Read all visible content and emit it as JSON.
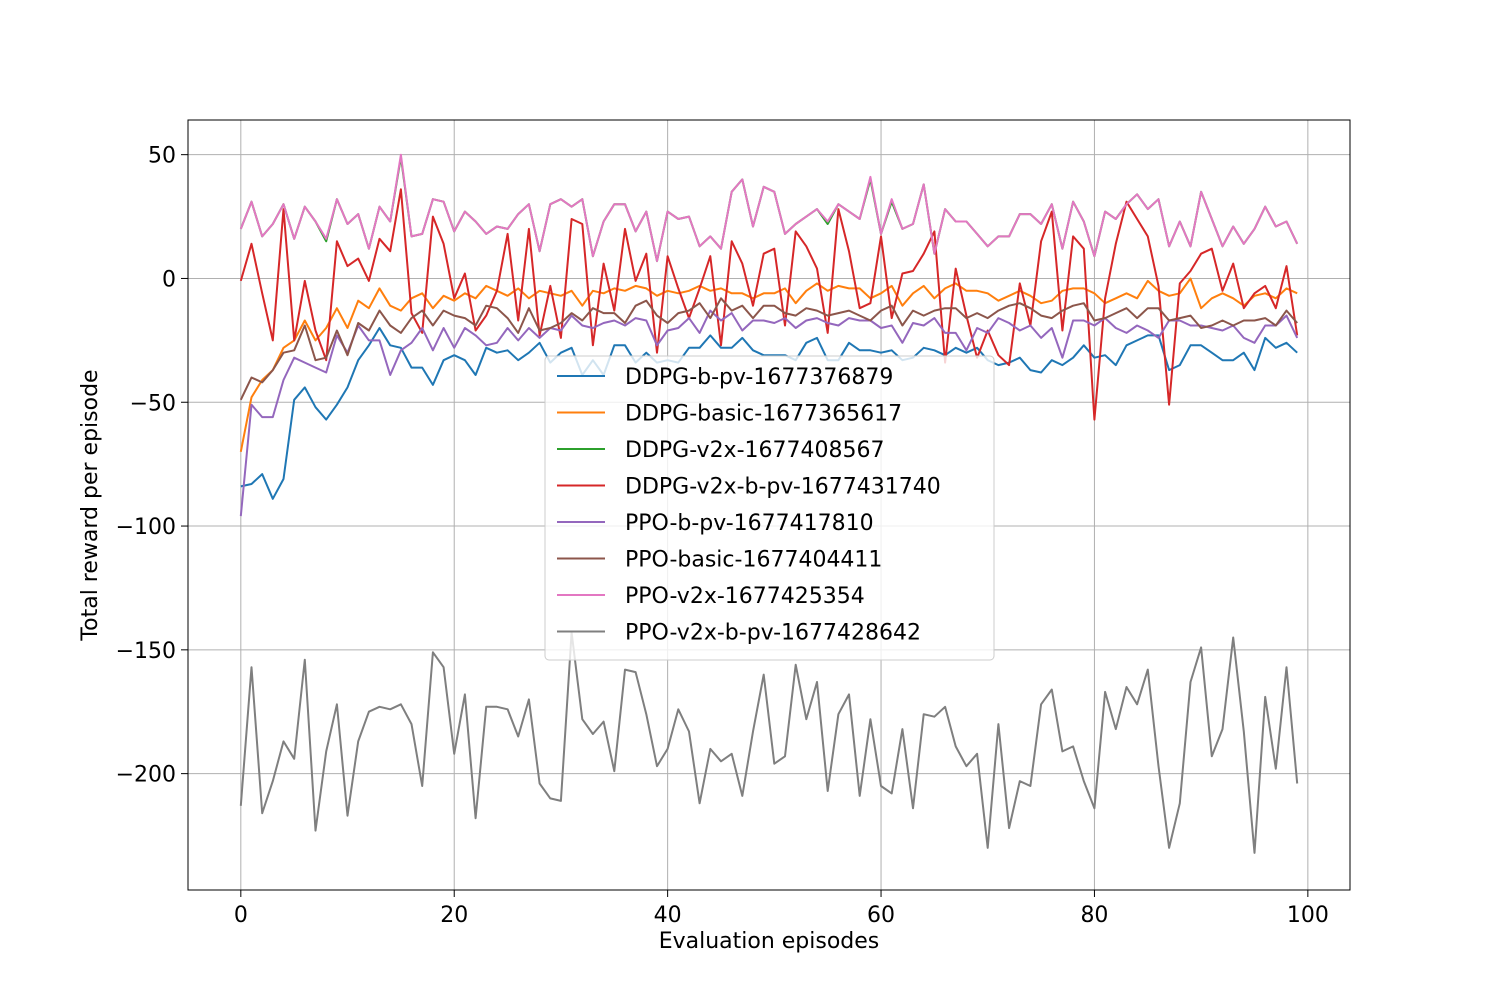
{
  "chart_data": {
    "type": "line",
    "title": "",
    "xlabel": "Evaluation episodes",
    "ylabel": "Total reward per episode",
    "xlim": [
      -4.95,
      103.95
    ],
    "ylim": [
      -247,
      64
    ],
    "xticks": [
      0,
      20,
      40,
      60,
      80,
      100
    ],
    "yticks": [
      -200,
      -150,
      -100,
      -50,
      0,
      50
    ],
    "xtick_labels": [
      "0",
      "20",
      "40",
      "60",
      "80",
      "100"
    ],
    "ytick_labels": [
      "−200",
      "−150",
      "−100",
      "−50",
      "0",
      "50"
    ],
    "grid": true,
    "legend_position": "center",
    "x_start": 0,
    "x_step": 1,
    "series": [
      {
        "name": "DDPG-b-pv-1677376879",
        "color": "#1f77b4",
        "values": [
          -84,
          -83,
          -79,
          -89,
          -81,
          -49,
          -44,
          -52,
          -57,
          -51,
          -44,
          -33,
          -27,
          -20,
          -27,
          -28,
          -36,
          -36,
          -43,
          -33,
          -31,
          -33,
          -39,
          -28,
          -30,
          -29,
          -33,
          -30,
          -26,
          -34,
          -30,
          -28,
          -39,
          -33,
          -39,
          -27,
          -27,
          -34,
          -30,
          -34,
          -33,
          -34,
          -28,
          -28,
          -23,
          -28,
          -28,
          -24,
          -29,
          -31,
          -31,
          -31,
          -33,
          -26,
          -24,
          -33,
          -33,
          -26,
          -29,
          -29,
          -30,
          -29,
          -33,
          -32,
          -28,
          -29,
          -31,
          -28,
          -30,
          -28,
          -33,
          -35,
          -34,
          -32,
          -37,
          -38,
          -33,
          -35,
          -32,
          -27,
          -32,
          -31,
          -35,
          -27,
          -25,
          -23,
          -23,
          -37,
          -35,
          -27,
          -27,
          -30,
          -33,
          -33,
          -30,
          -37,
          -24,
          -28,
          -26,
          -30
        ]
      },
      {
        "name": "DDPG-basic-1677365617",
        "color": "#ff7f0e",
        "values": [
          -70,
          -48,
          -41,
          -37,
          -28,
          -25,
          -17,
          -25,
          -20,
          -12,
          -20,
          -9,
          -12,
          -4,
          -11,
          -13,
          -8,
          -6,
          -12,
          -7,
          -9,
          -6,
          -8,
          -3,
          -5,
          -7,
          -4,
          -8,
          -5,
          -6,
          -7,
          -5,
          -11,
          -5,
          -6,
          -4,
          -5,
          -3,
          -4,
          -7,
          -5,
          -6,
          -5,
          -3,
          -5,
          -4,
          -6,
          -6,
          -8,
          -6,
          -6,
          -4,
          -10,
          -5,
          -2,
          -5,
          -3,
          -4,
          -4,
          -8,
          -6,
          -3,
          -11,
          -6,
          -3,
          -8,
          -4,
          -2,
          -5,
          -5,
          -6,
          -9,
          -7,
          -5,
          -7,
          -10,
          -9,
          -5,
          -4,
          -4,
          -6,
          -10,
          -8,
          -6,
          -8,
          -1,
          -5,
          -7,
          -6,
          0,
          -12,
          -8,
          -6,
          -8,
          -11,
          -7,
          -6,
          -8,
          -4,
          -6
        ]
      },
      {
        "name": "DDPG-v2x-1677408567",
        "color": "#2ca02c",
        "values": [
          20,
          31,
          17,
          22,
          30,
          16,
          29,
          23,
          15,
          32,
          22,
          26,
          12,
          29,
          23,
          49,
          17,
          18,
          32,
          31,
          19,
          27,
          23,
          18,
          21,
          20,
          26,
          30,
          11,
          30,
          32,
          29,
          32,
          9,
          23,
          30,
          30,
          19,
          27,
          7,
          27,
          24,
          25,
          13,
          17,
          12,
          35,
          40,
          21,
          37,
          35,
          18,
          22,
          25,
          28,
          22,
          30,
          27,
          24,
          40,
          18,
          31,
          20,
          22,
          38,
          10,
          28,
          23,
          23,
          18,
          13,
          17,
          17,
          26,
          26,
          22,
          30,
          12,
          31,
          23,
          9,
          27,
          24,
          30,
          34,
          28,
          32,
          13,
          23,
          13,
          35,
          24,
          13,
          21,
          14,
          20,
          29,
          21,
          23,
          14
        ]
      },
      {
        "name": "DDPG-v2x-b-pv-1677431740",
        "color": "#d62728",
        "values": [
          -1,
          14,
          -6,
          -25,
          28,
          -25,
          -1,
          -21,
          -33,
          15,
          5,
          8,
          -1,
          16,
          11,
          36,
          -14,
          -22,
          25,
          14,
          -8,
          2,
          -21,
          -15,
          -5,
          18,
          -17,
          20,
          -23,
          -3,
          -24,
          24,
          22,
          -27,
          6,
          -13,
          20,
          -1,
          10,
          -30,
          9,
          -4,
          -16,
          -4,
          9,
          -27,
          15,
          6,
          -11,
          10,
          12,
          -19,
          19,
          13,
          4,
          -22,
          28,
          11,
          -12,
          -10,
          17,
          -16,
          2,
          3,
          10,
          19,
          -34,
          4,
          -15,
          -32,
          -21,
          -31,
          -35,
          -2,
          -19,
          15,
          27,
          -21,
          17,
          12,
          -57,
          -8,
          14,
          31,
          24,
          17,
          -3,
          -51,
          -2,
          3,
          10,
          12,
          -5,
          6,
          -12,
          -6,
          -3,
          -12,
          5,
          -23
        ]
      },
      {
        "name": "PPO-b-pv-1677417810",
        "color": "#9467bd",
        "values": [
          -96,
          -51,
          -56,
          -56,
          -41,
          -32,
          -34,
          -36,
          -38,
          -23,
          -30,
          -19,
          -25,
          -25,
          -39,
          -29,
          -26,
          -20,
          -29,
          -20,
          -28,
          -20,
          -23,
          -27,
          -26,
          -20,
          -25,
          -20,
          -24,
          -20,
          -21,
          -15,
          -19,
          -20,
          -18,
          -17,
          -19,
          -16,
          -17,
          -27,
          -21,
          -20,
          -16,
          -22,
          -13,
          -17,
          -14,
          -21,
          -17,
          -17,
          -18,
          -16,
          -20,
          -17,
          -16,
          -18,
          -19,
          -16,
          -17,
          -17,
          -20,
          -19,
          -26,
          -18,
          -19,
          -16,
          -22,
          -22,
          -29,
          -20,
          -22,
          -16,
          -18,
          -21,
          -19,
          -24,
          -20,
          -32,
          -17,
          -17,
          -19,
          -16,
          -20,
          -22,
          -19,
          -21,
          -24,
          -17,
          -17,
          -19,
          -19,
          -20,
          -21,
          -19,
          -24,
          -26,
          -19,
          -19,
          -15,
          -24
        ]
      },
      {
        "name": "PPO-basic-1677404411",
        "color": "#8c564b",
        "values": [
          -49,
          -40,
          -42,
          -37,
          -30,
          -29,
          -19,
          -33,
          -32,
          -21,
          -31,
          -18,
          -21,
          -13,
          -19,
          -22,
          -16,
          -13,
          -19,
          -13,
          -15,
          -16,
          -19,
          -11,
          -12,
          -16,
          -22,
          -12,
          -21,
          -20,
          -18,
          -14,
          -17,
          -12,
          -14,
          -14,
          -18,
          -11,
          -9,
          -15,
          -18,
          -14,
          -13,
          -10,
          -16,
          -8,
          -13,
          -11,
          -16,
          -11,
          -11,
          -14,
          -15,
          -12,
          -13,
          -15,
          -14,
          -13,
          -15,
          -17,
          -13,
          -11,
          -19,
          -13,
          -15,
          -13,
          -12,
          -12,
          -16,
          -14,
          -16,
          -13,
          -11,
          -10,
          -12,
          -15,
          -16,
          -13,
          -11,
          -10,
          -17,
          -16,
          -14,
          -12,
          -16,
          -12,
          -12,
          -17,
          -16,
          -15,
          -20,
          -19,
          -17,
          -19,
          -17,
          -17,
          -16,
          -19,
          -13,
          -18
        ]
      },
      {
        "name": "PPO-v2x-1677425354",
        "color": "#e377c2",
        "values": [
          20,
          31,
          17,
          22,
          30,
          16,
          29,
          23,
          16,
          32,
          22,
          26,
          12,
          29,
          23,
          50,
          17,
          18,
          32,
          31,
          19,
          27,
          23,
          18,
          21,
          20,
          26,
          30,
          11,
          30,
          32,
          29,
          32,
          9,
          23,
          30,
          30,
          19,
          27,
          7,
          27,
          24,
          25,
          13,
          17,
          12,
          35,
          40,
          21,
          37,
          35,
          18,
          22,
          25,
          28,
          23,
          30,
          27,
          24,
          41,
          18,
          32,
          20,
          22,
          38,
          10,
          28,
          23,
          23,
          18,
          13,
          17,
          17,
          26,
          26,
          22,
          30,
          12,
          31,
          23,
          9,
          27,
          24,
          30,
          34,
          28,
          32,
          13,
          23,
          13,
          35,
          24,
          13,
          21,
          14,
          20,
          29,
          21,
          23,
          14
        ]
      },
      {
        "name": "PPO-v2x-b-pv-1677428642",
        "color": "#7f7f7f",
        "values": [
          -213,
          -157,
          -216,
          -203,
          -187,
          -194,
          -154,
          -223,
          -191,
          -172,
          -217,
          -187,
          -175,
          -173,
          -174,
          -172,
          -180,
          -205,
          -151,
          -157,
          -192,
          -168,
          -218,
          -173,
          -173,
          -174,
          -185,
          -170,
          -204,
          -210,
          -211,
          -143,
          -178,
          -184,
          -179,
          -199,
          -158,
          -159,
          -176,
          -197,
          -190,
          -174,
          -183,
          -212,
          -190,
          -195,
          -192,
          -209,
          -183,
          -160,
          -196,
          -193,
          -156,
          -178,
          -163,
          -207,
          -176,
          -168,
          -209,
          -178,
          -205,
          -208,
          -182,
          -214,
          -176,
          -177,
          -173,
          -189,
          -197,
          -192,
          -230,
          -180,
          -222,
          -203,
          -205,
          -172,
          -166,
          -191,
          -189,
          -203,
          -214,
          -167,
          -182,
          -165,
          -172,
          -158,
          -197,
          -230,
          -212,
          -163,
          -149,
          -193,
          -182,
          -145,
          -183,
          -232,
          -169,
          -198,
          -157,
          -204
        ]
      }
    ]
  }
}
